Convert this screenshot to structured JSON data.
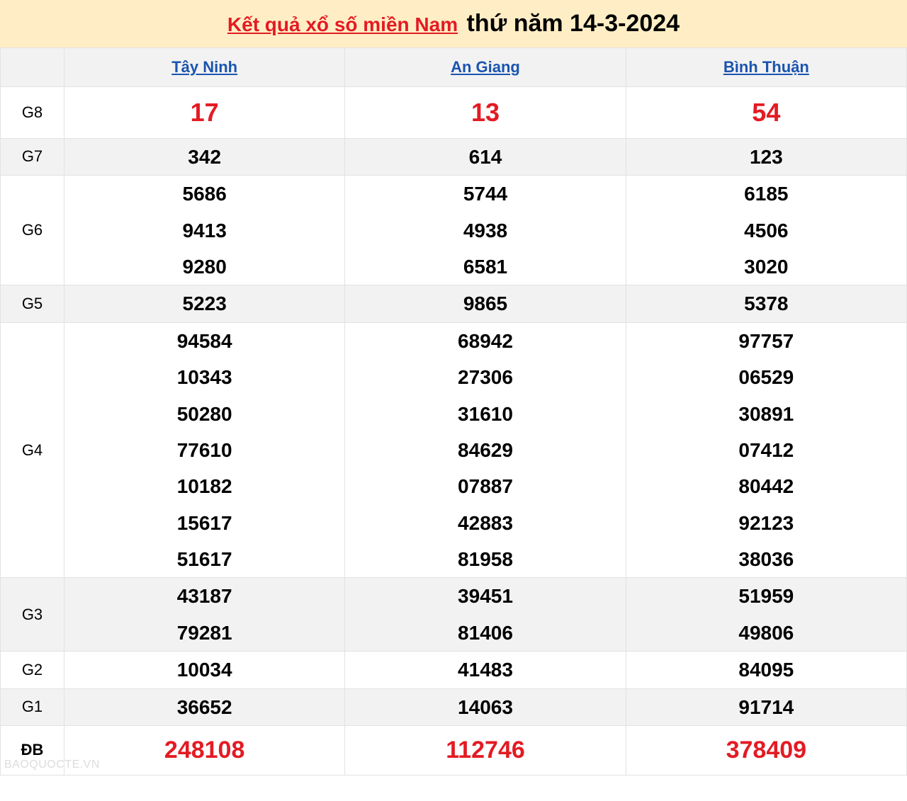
{
  "header": {
    "link_text": "Kết quả xổ số miền Nam",
    "date_text": "thứ năm 14-3-2024"
  },
  "colors": {
    "header_bg": "#ffeec5",
    "header_link": "#e31b23",
    "province_link": "#1a54b0",
    "shade_bg": "#f2f2f2",
    "border": "#e2e2e2",
    "highlight": "#e31b23",
    "text": "#000000"
  },
  "typography": {
    "header_link_fontsize": 28,
    "header_date_fontsize": 34,
    "province_fontsize": 22,
    "prize_label_fontsize": 22,
    "value_fontsize": 28,
    "g8_fontsize": 36,
    "db_fontsize": 34
  },
  "provinces": [
    "Tây Ninh",
    "An Giang",
    "Bình Thuận"
  ],
  "prizes": [
    {
      "label": "G8",
      "shade": false,
      "highlight": true,
      "values": [
        [
          "17"
        ],
        [
          "13"
        ],
        [
          "54"
        ]
      ]
    },
    {
      "label": "G7",
      "shade": true,
      "highlight": false,
      "values": [
        [
          "342"
        ],
        [
          "614"
        ],
        [
          "123"
        ]
      ]
    },
    {
      "label": "G6",
      "shade": false,
      "highlight": false,
      "values": [
        [
          "5686",
          "9413",
          "9280"
        ],
        [
          "5744",
          "4938",
          "6581"
        ],
        [
          "6185",
          "4506",
          "3020"
        ]
      ]
    },
    {
      "label": "G5",
      "shade": true,
      "highlight": false,
      "values": [
        [
          "5223"
        ],
        [
          "9865"
        ],
        [
          "5378"
        ]
      ]
    },
    {
      "label": "G4",
      "shade": false,
      "highlight": false,
      "values": [
        [
          "94584",
          "10343",
          "50280",
          "77610",
          "10182",
          "15617",
          "51617"
        ],
        [
          "68942",
          "27306",
          "31610",
          "84629",
          "07887",
          "42883",
          "81958"
        ],
        [
          "97757",
          "06529",
          "30891",
          "07412",
          "80442",
          "92123",
          "38036"
        ]
      ]
    },
    {
      "label": "G3",
      "shade": true,
      "highlight": false,
      "values": [
        [
          "43187",
          "79281"
        ],
        [
          "39451",
          "81406"
        ],
        [
          "51959",
          "49806"
        ]
      ]
    },
    {
      "label": "G2",
      "shade": false,
      "highlight": false,
      "values": [
        [
          "10034"
        ],
        [
          "41483"
        ],
        [
          "84095"
        ]
      ]
    },
    {
      "label": "G1",
      "shade": true,
      "highlight": false,
      "values": [
        [
          "36652"
        ],
        [
          "14063"
        ],
        [
          "91714"
        ]
      ]
    },
    {
      "label": "ĐB",
      "shade": false,
      "highlight": true,
      "values": [
        [
          "248108"
        ],
        [
          "112746"
        ],
        [
          "378409"
        ]
      ]
    }
  ],
  "watermark": "BAOQUOCTE.VN"
}
